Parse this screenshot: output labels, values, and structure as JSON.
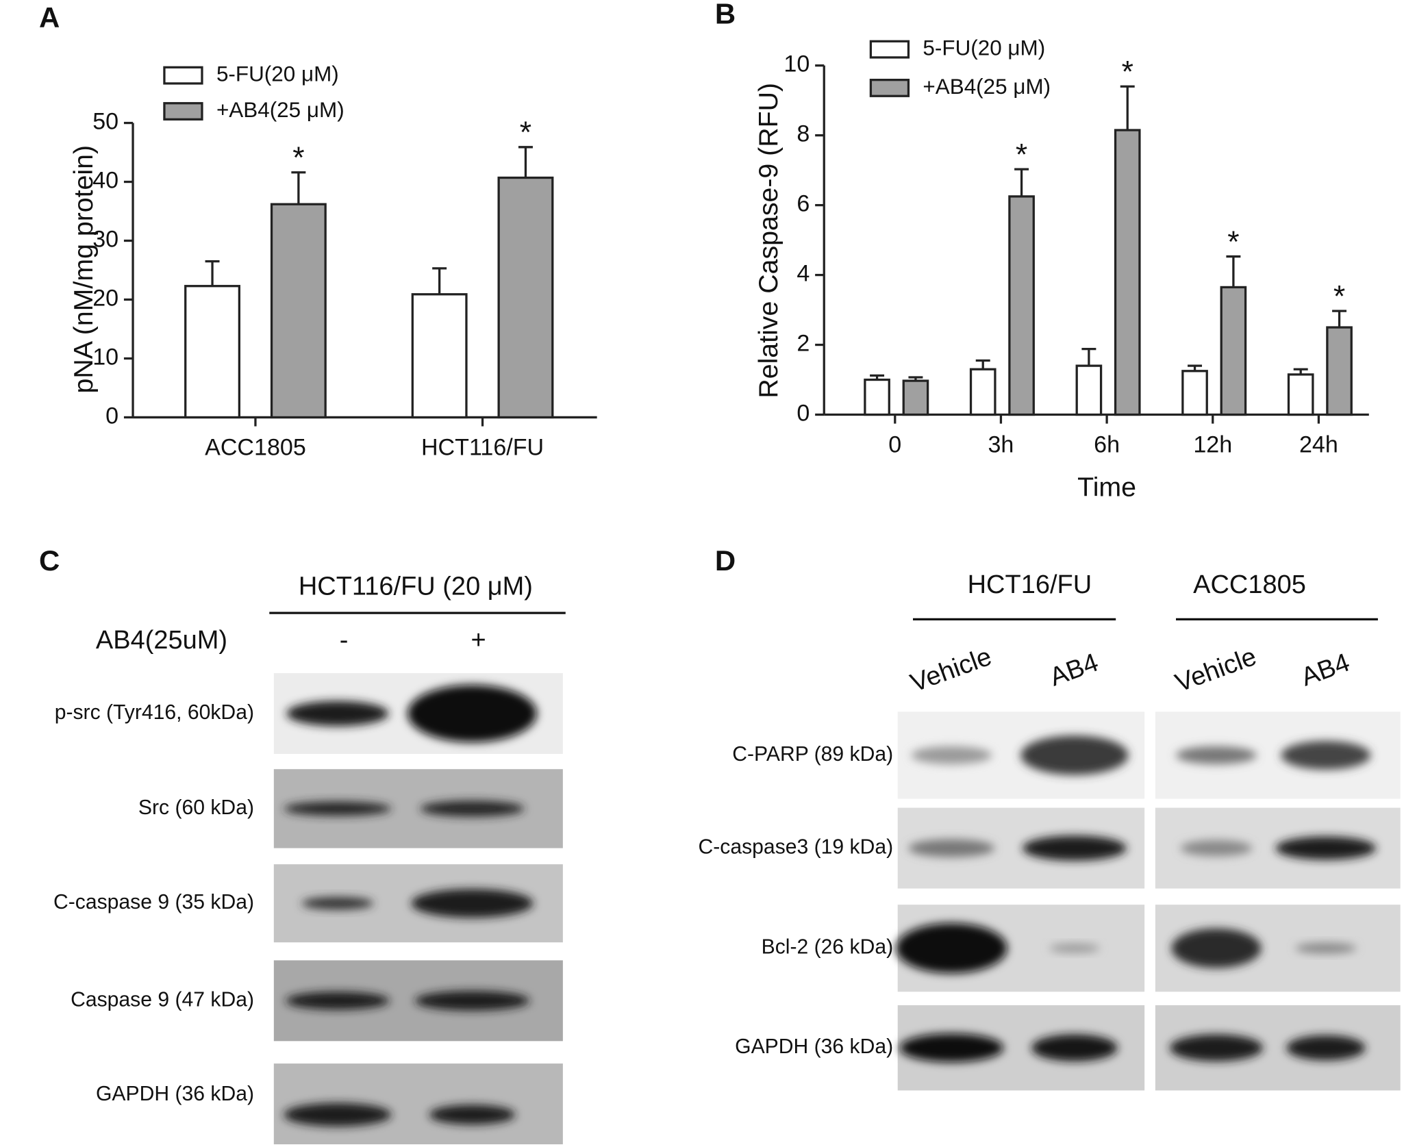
{
  "chart_data": [
    {
      "type": "bar",
      "panel": "A",
      "ylabel": "pNA (nM/mg protein)",
      "categories": [
        "ACC1805",
        "HCT116/FU"
      ],
      "series": [
        {
          "name": "5-FU(20 μM)",
          "color": "#ffffff",
          "values": [
            22.3,
            20.9
          ],
          "errors": [
            4.2,
            4.4
          ]
        },
        {
          "name": "+AB4(25 μM)",
          "color": "#a0a0a0",
          "values": [
            36.2,
            40.7
          ],
          "errors": [
            5.4,
            5.2
          ],
          "annotations": [
            "*",
            "*"
          ]
        }
      ],
      "ylim": [
        0,
        50
      ],
      "yticks": [
        0,
        10,
        20,
        30,
        40,
        50
      ]
    },
    {
      "type": "bar",
      "panel": "B",
      "ylabel": "Relative Caspase-9 (RFU)",
      "xlabel": "Time",
      "categories": [
        "0",
        "3h",
        "6h",
        "12h",
        "24h"
      ],
      "series": [
        {
          "name": "5-FU(20 μM)",
          "color": "#ffffff",
          "values": [
            1.0,
            1.3,
            1.4,
            1.25,
            1.15
          ],
          "errors": [
            0.12,
            0.25,
            0.48,
            0.15,
            0.15
          ]
        },
        {
          "name": "+AB4(25 μM)",
          "color": "#a0a0a0",
          "values": [
            0.97,
            6.25,
            8.15,
            3.65,
            2.5
          ],
          "errors": [
            0.1,
            0.78,
            1.25,
            0.88,
            0.47
          ],
          "annotations": [
            null,
            "*",
            "*",
            "*",
            "*"
          ]
        }
      ],
      "ylim": [
        0,
        10
      ],
      "yticks": [
        0,
        2,
        4,
        6,
        8,
        10
      ]
    }
  ],
  "blots": [
    {
      "panel": "C",
      "header": "HCT116/FU (20 μM)",
      "treatment_label": "AB4(25uM)",
      "lanes": [
        "-",
        "+"
      ],
      "rows": [
        "p-src (Tyr416, 60kDa)",
        "Src (60 kDa)",
        "C-caspase 9 (35 kDa)",
        "Caspase 9 (47 kDa)",
        "GAPDH (36 kDa)"
      ]
    },
    {
      "panel": "D",
      "groups": [
        {
          "name": "HCT16/FU",
          "lanes": [
            "Vehicle",
            "AB4"
          ]
        },
        {
          "name": "ACC1805",
          "lanes": [
            "Vehicle",
            "AB4"
          ]
        }
      ],
      "rows": [
        "C-PARP (89 kDa)",
        "C-caspase3 (19 kDa)",
        "Bcl-2 (26 kDa)",
        "GAPDH (36 kDa)"
      ]
    }
  ]
}
